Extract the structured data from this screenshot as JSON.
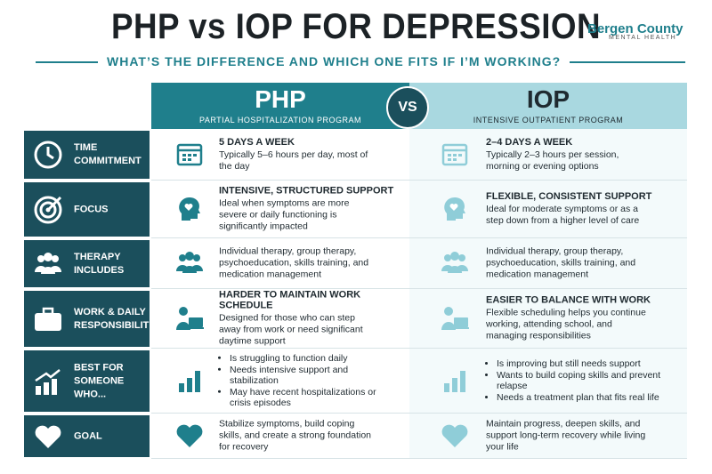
{
  "header": {
    "title": "PHP vs IOP FOR DEPRESSION",
    "brand": "Bergen County",
    "brand_sub": "MENTAL HEALTH",
    "subtitle": "WHAT’S THE DIFFERENCE AND WHICH ONE FITS IF I’M WORKING?"
  },
  "columns": {
    "php": {
      "title": "PHP",
      "subtitle": "PARTIAL HOSPITALIZATION PROGRAM"
    },
    "vs": "VS",
    "iop": {
      "title": "IOP",
      "subtitle": "INTENSIVE OUTPATIENT PROGRAM"
    }
  },
  "rows": [
    {
      "label": "TIME COMMITMENT",
      "php": {
        "heading": "5 DAYS A WEEK",
        "text": "Typically 5–6 hours per day, most of the day"
      },
      "iop": {
        "heading": "2–4 DAYS A WEEK",
        "text": "Typically 2–3 hours per session, morning or evening options"
      }
    },
    {
      "label": "FOCUS",
      "php": {
        "heading": "INTENSIVE, STRUCTURED SUPPORT",
        "text": "Ideal when symptoms are more severe or daily functioning is significantly impacted"
      },
      "iop": {
        "heading": "FLEXIBLE, CONSISTENT SUPPORT",
        "text": "Ideal for moderate symptoms or as a step down from a higher level of care"
      }
    },
    {
      "label": "THERAPY INCLUDES",
      "php": {
        "text": "Individual therapy, group therapy, psychoeducation, skills training, and medication management"
      },
      "iop": {
        "text": "Individual therapy, group therapy, psychoeducation, skills training, and medication management"
      }
    },
    {
      "label": "WORK & DAILY RESPONSIBILITIES",
      "php": {
        "heading": "HARDER TO MAINTAIN WORK SCHEDULE",
        "text": "Designed for those who can step away from work or need significant daytime support"
      },
      "iop": {
        "heading": "EASIER TO BALANCE WITH WORK",
        "text": "Flexible scheduling helps you continue working, attending school, and managing responsibilities"
      }
    },
    {
      "label": "BEST FOR SOMEONE WHO...",
      "php": {
        "bullets": [
          "Is struggling to function daily",
          "Needs intensive support and stabilization",
          "May have recent hospitalizations or crisis episodes"
        ]
      },
      "iop": {
        "bullets": [
          "Is improving but still needs support",
          "Wants to build coping skills and prevent relapse",
          "Needs a treatment plan that fits real life"
        ]
      }
    },
    {
      "label": "GOAL",
      "php": {
        "text": "Stabilize symptoms, build coping skills, and create a strong foundation for recovery"
      },
      "iop": {
        "text": "Maintain progress, deepen skills, and support long-term recovery while living your life"
      }
    }
  ]
}
